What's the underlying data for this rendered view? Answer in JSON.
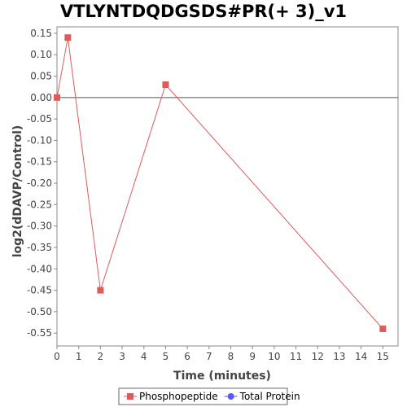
{
  "chart_data": {
    "type": "line",
    "title": "VTLYNTDQDGSDS#PR(+ 3)_v1",
    "xlabel": "Time (minutes)",
    "ylabel": "log2(dDAVP/Control)",
    "xlim": [
      0,
      15.7
    ],
    "ylim": [
      -0.58,
      0.165
    ],
    "x_ticks": [
      0,
      1,
      2,
      3,
      4,
      5,
      6,
      7,
      8,
      9,
      10,
      11,
      12,
      13,
      14,
      15
    ],
    "y_ticks": [
      "0.15",
      "0.10",
      "0.05",
      "0.00",
      "-0.05",
      "-0.10",
      "-0.15",
      "-0.20",
      "-0.25",
      "-0.30",
      "-0.35",
      "-0.40",
      "-0.45",
      "-0.50",
      "-0.55"
    ],
    "zero_line": true,
    "grid": false,
    "legend_position": "bottom-center",
    "series": [
      {
        "name": "Phosphopeptide",
        "color": "#e05a5a",
        "marker": "square",
        "x": [
          0,
          0.5,
          2,
          5,
          15
        ],
        "y": [
          0.0,
          0.14,
          -0.45,
          0.03,
          -0.54
        ]
      },
      {
        "name": "Total Protein",
        "color": "#5a5af0",
        "marker": "circle",
        "x": [],
        "y": []
      }
    ]
  }
}
